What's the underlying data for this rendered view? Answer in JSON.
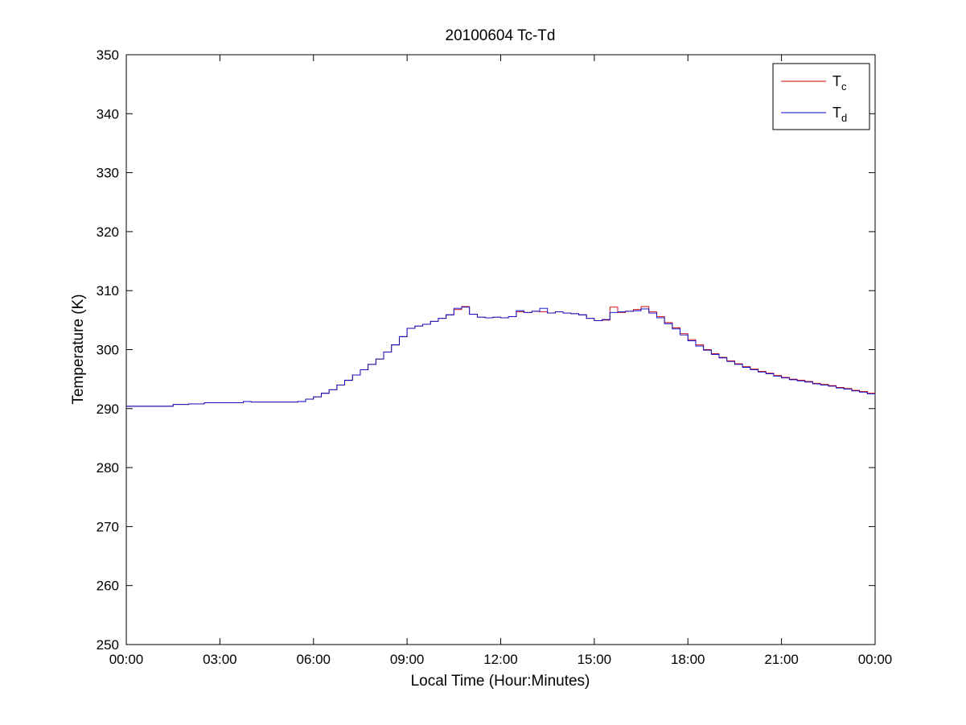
{
  "window": {
    "title": "20100604 Tc-Td"
  },
  "chart_data": {
    "type": "line",
    "title": "20100604 Tc-Td",
    "xlabel": "Local Time (Hour:Minutes)",
    "ylabel": "Temperature (K)",
    "xlim": [
      0,
      24
    ],
    "ylim": [
      250,
      350
    ],
    "grid": false,
    "step_interpolation": true,
    "legend_position": "top-right",
    "x_ticks": [
      0,
      3,
      6,
      9,
      12,
      15,
      18,
      21,
      24
    ],
    "x_tick_labels": [
      "00:00",
      "03:00",
      "06:00",
      "09:00",
      "12:00",
      "15:00",
      "18:00",
      "21:00",
      "00:00"
    ],
    "y_ticks": [
      250,
      260,
      270,
      280,
      290,
      300,
      310,
      320,
      330,
      340,
      350
    ],
    "y_tick_labels": [
      "250",
      "260",
      "270",
      "280",
      "290",
      "300",
      "310",
      "320",
      "330",
      "340",
      "350"
    ],
    "x_hours": [
      0,
      0.25,
      0.5,
      0.75,
      1,
      1.25,
      1.5,
      1.75,
      2,
      2.25,
      2.5,
      2.75,
      3,
      3.25,
      3.5,
      3.75,
      4,
      4.25,
      4.5,
      4.75,
      5,
      5.25,
      5.5,
      5.75,
      6,
      6.25,
      6.5,
      6.75,
      7,
      7.25,
      7.5,
      7.75,
      8,
      8.25,
      8.5,
      8.75,
      9,
      9.25,
      9.5,
      9.75,
      10,
      10.25,
      10.5,
      10.75,
      11,
      11.25,
      11.5,
      11.75,
      12,
      12.25,
      12.5,
      12.75,
      13,
      13.25,
      13.5,
      13.75,
      14,
      14.25,
      14.5,
      14.75,
      15,
      15.25,
      15.5,
      15.75,
      16,
      16.25,
      16.5,
      16.75,
      17,
      17.25,
      17.5,
      17.75,
      18,
      18.25,
      18.5,
      18.75,
      19,
      19.25,
      19.5,
      19.75,
      20,
      20.25,
      20.5,
      20.75,
      21,
      21.25,
      21.5,
      21.75,
      22,
      22.25,
      22.5,
      22.75,
      23,
      23.25,
      23.5,
      23.75,
      24
    ],
    "series": [
      {
        "name": "Tc",
        "label_main": "T",
        "label_sub": "c",
        "color": "#cc0000",
        "values": [
          290.4,
          290.4,
          290.4,
          290.4,
          290.4,
          290.4,
          290.7,
          290.7,
          290.8,
          290.8,
          291.0,
          291.0,
          291.0,
          291.0,
          291.0,
          291.2,
          291.1,
          291.1,
          291.1,
          291.1,
          291.1,
          291.1,
          291.2,
          291.6,
          292.0,
          292.6,
          293.2,
          294.0,
          294.8,
          295.7,
          296.6,
          297.5,
          298.4,
          299.6,
          300.8,
          302.2,
          303.6,
          304.0,
          304.3,
          304.8,
          305.3,
          305.9,
          306.8,
          307.3,
          306.0,
          305.5,
          305.4,
          305.5,
          305.4,
          305.6,
          306.4,
          306.3,
          306.5,
          306.4,
          306.2,
          306.4,
          306.2,
          306.1,
          305.9,
          305.3,
          304.9,
          305.0,
          307.2,
          306.3,
          306.5,
          306.8,
          307.3,
          306.4,
          305.6,
          304.6,
          303.7,
          302.7,
          301.7,
          300.8,
          300.0,
          299.3,
          298.7,
          298.1,
          297.6,
          297.1,
          296.7,
          296.3,
          296.0,
          295.6,
          295.3,
          295.0,
          294.8,
          294.6,
          294.3,
          294.1,
          293.9,
          293.6,
          293.4,
          293.1,
          292.9,
          292.6,
          292.4
        ]
      },
      {
        "name": "Td",
        "label_main": "T",
        "label_sub": "d",
        "color": "#0000cc",
        "values": [
          290.4,
          290.4,
          290.4,
          290.4,
          290.4,
          290.4,
          290.7,
          290.7,
          290.8,
          290.8,
          291.0,
          291.0,
          291.0,
          291.0,
          291.0,
          291.2,
          291.1,
          291.1,
          291.1,
          291.1,
          291.1,
          291.1,
          291.2,
          291.6,
          292.0,
          292.6,
          293.2,
          294.0,
          294.8,
          295.7,
          296.6,
          297.5,
          298.4,
          299.6,
          300.8,
          302.2,
          303.6,
          304.0,
          304.3,
          304.8,
          305.3,
          305.9,
          307.0,
          307.2,
          306.0,
          305.5,
          305.4,
          305.5,
          305.4,
          305.6,
          306.6,
          306.3,
          306.5,
          307.0,
          306.2,
          306.4,
          306.2,
          306.1,
          305.9,
          305.3,
          304.9,
          305.1,
          306.3,
          306.4,
          306.5,
          306.6,
          306.9,
          306.2,
          305.4,
          304.4,
          303.5,
          302.5,
          301.5,
          300.6,
          299.9,
          299.2,
          298.6,
          298.0,
          297.5,
          297.0,
          296.6,
          296.2,
          295.9,
          295.5,
          295.2,
          294.9,
          294.7,
          294.5,
          294.2,
          294.0,
          293.8,
          293.5,
          293.3,
          293.0,
          292.8,
          292.5,
          292.3
        ]
      }
    ],
    "axis_color": "#000000",
    "background_color": "#ffffff"
  }
}
